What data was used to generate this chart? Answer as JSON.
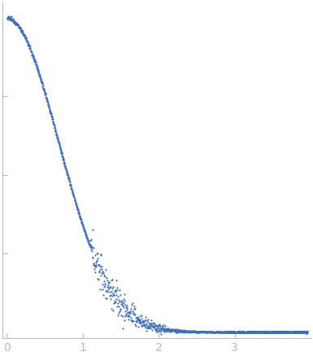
{
  "title": "",
  "xlabel": "",
  "ylabel": "",
  "xlim": [
    -0.05,
    4.0
  ],
  "bg_color": "#ffffff",
  "axes_color": "#aabcdd",
  "tick_color": "#aabcdd",
  "data_color": "#3a6bbf",
  "xticks": [
    0,
    1,
    2,
    3
  ],
  "n_points_dense": 400,
  "n_points_sparse": 800,
  "q_dense_max": 1.1,
  "q_total_max": 3.95,
  "I0": 1.0,
  "Rg": 1.8,
  "error_bar_start_q": 2.9,
  "marker_size": 2.5,
  "figsize": [
    3.85,
    4.37
  ],
  "dpi": 100
}
